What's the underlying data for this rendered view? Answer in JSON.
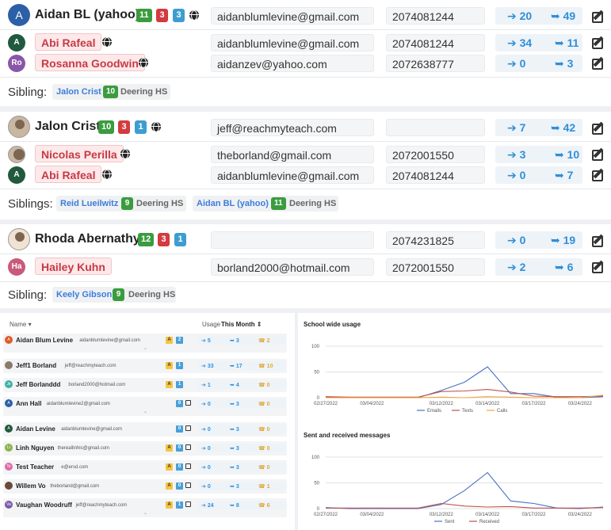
{
  "families": [
    {
      "student": {
        "name": "Aidan BL (yahoo)",
        "avatar": "A",
        "avatar_color": "#2d5fa8",
        "badges": [
          "11",
          "3",
          "3"
        ],
        "email": "aidanblumlevine@gmail.com",
        "phone": "2074081244",
        "sent": "20",
        "received": "49"
      },
      "contacts": [
        {
          "name": "Abi Rafeal",
          "avatar": "A",
          "avatar_color": "#21593f",
          "email": "aidanblumlevine@gmail.com",
          "phone": "2074081244",
          "sent": "34",
          "received": "11"
        },
        {
          "name": "Rosanna Goodwin",
          "avatar": "Ro",
          "avatar_color": "#8a57a8",
          "email": "aidanzev@yahoo.com",
          "phone": "2072638777",
          "sent": "0",
          "received": "3"
        }
      ],
      "sibling_label": "Sibling:",
      "siblings": [
        {
          "name": "Jalon Crist",
          "badge": "10",
          "school": "Deering HS"
        }
      ]
    },
    {
      "student": {
        "name": "Jalon Crist",
        "avatar": "",
        "avatar_color": "#c9b7a2",
        "badges": [
          "10",
          "3",
          "1"
        ],
        "email": "jeff@reachmyteach.com",
        "phone": "",
        "sent": "7",
        "received": "42"
      },
      "contacts": [
        {
          "name": "Nicolas Perilla",
          "avatar": "",
          "avatar_color": "#c9b7a2",
          "email": "theborland@gmail.com",
          "phone": "2072001550",
          "sent": "3",
          "received": "10"
        },
        {
          "name": "Abi Rafeal",
          "avatar": "A",
          "avatar_color": "#21593f",
          "email": "aidanblumlevine@gmail.com",
          "phone": "2074081244",
          "sent": "0",
          "received": "7"
        }
      ],
      "sibling_label": "Siblings:",
      "siblings": [
        {
          "name": "Reid Lueilwitz",
          "badge": "9",
          "school": "Deering HS"
        },
        {
          "name": "Aidan BL (yahoo)",
          "badge": "11",
          "school": "Deering HS"
        }
      ]
    },
    {
      "student": {
        "name": "Rhoda Abernathy",
        "avatar": "",
        "avatar_color": "#f1e3d3",
        "badges": [
          "12",
          "3",
          "1"
        ],
        "email": "",
        "phone": "2074231825",
        "sent": "0",
        "received": "19"
      },
      "contacts": [
        {
          "name": "Hailey Kuhn",
          "avatar": "Ha",
          "avatar_color": "#c85a7c",
          "email": "borland2000@hotmail.com",
          "phone": "2072001550",
          "sent": "2",
          "received": "6"
        }
      ],
      "sibling_label": "Sibling:",
      "siblings": [
        {
          "name": "Keely Gibson",
          "badge": "9",
          "school": "Deering HS"
        }
      ]
    }
  ],
  "table": {
    "name_header": "Name",
    "usage_header": "Usage",
    "period": "This Month",
    "rows": [
      {
        "avatar": "A",
        "color": "#e05a2b",
        "name": "Aidan Blum Levine",
        "email": "aidanblumlevine@gmail.com",
        "a": "A",
        "n": "2",
        "sent": "5",
        "recv": "3",
        "calls": "2",
        "edit": false,
        "chev": true
      },
      {
        "avatar": "",
        "color": "#8a7a6a",
        "name": "Jeff1 Borland",
        "email": "jeff@reachmyteach.com",
        "a": "A",
        "n": "1",
        "sent": "33",
        "recv": "17",
        "calls": "10",
        "edit": false,
        "chev": false
      },
      {
        "avatar": "Je",
        "color": "#3fb1a3",
        "name": "Jeff Borlanddd",
        "email": "borland2000@hotmail.com",
        "a": "A",
        "n": "1",
        "sent": "1",
        "recv": "4",
        "calls": "0",
        "edit": false,
        "chev": false
      },
      {
        "avatar": "A",
        "color": "#2d5fa8",
        "name": "Ann Hall",
        "email": "aidanblumlevine2@gmail.com",
        "a": "",
        "n": "0",
        "sent": "0",
        "recv": "3",
        "calls": "0",
        "edit": true,
        "chev": true
      },
      {
        "avatar": "A",
        "color": "#21593f",
        "name": "Aidan Levine",
        "email": "aidanblumlevine@gmail.com",
        "a": "",
        "n": "0",
        "sent": "0",
        "recv": "3",
        "calls": "0",
        "edit": true,
        "chev": false
      },
      {
        "avatar": "Li",
        "color": "#8bb34a",
        "name": "Linh Nguyen",
        "email": "thereallinhis@gmail.com",
        "a": "A",
        "n": "0",
        "sent": "0",
        "recv": "3",
        "calls": "0",
        "edit": true,
        "chev": false
      },
      {
        "avatar": "Te",
        "color": "#e06aa8",
        "name": "Test Teacher",
        "email": "e@ersd.com",
        "a": "A",
        "n": "0",
        "sent": "0",
        "recv": "3",
        "calls": "0",
        "edit": true,
        "chev": false
      },
      {
        "avatar": "",
        "color": "#6a4a3a",
        "name": "Willem Vo",
        "email": "theborland@gmail.com",
        "a": "A",
        "n": "0",
        "sent": "0",
        "recv": "3",
        "calls": "1",
        "edit": true,
        "chev": false
      },
      {
        "avatar": "Va",
        "color": "#7b5aa8",
        "name": "Vaughan Woodruff",
        "email": "jeff@reachmyteach.com",
        "a": "A",
        "n": "1",
        "sent": "24",
        "recv": "8",
        "calls": "6",
        "edit": true,
        "chev": true
      }
    ]
  },
  "chart_data": [
    {
      "type": "line",
      "title": "School wide usage",
      "x": [
        "02/27/2022",
        "03/02/2022",
        "03/04/2022",
        "03/06/2022",
        "03/08/2022",
        "03/12/2022",
        "03/13/2022",
        "03/14/2022",
        "03/15/2022",
        "03/17/2022",
        "03/20/2022",
        "03/24/2022",
        "03/27/2022"
      ],
      "x_ticks": [
        "02/27/2022",
        "03/04/2022",
        "03/12/2022",
        "03/14/2022",
        "03/17/2022",
        "03/24/2022"
      ],
      "ylim": [
        0,
        100
      ],
      "y_ticks": [
        0,
        50,
        100
      ],
      "series": [
        {
          "name": "Emails",
          "color": "#4472c4",
          "values": [
            1,
            0,
            0,
            0,
            0,
            14,
            30,
            60,
            8,
            8,
            1,
            0,
            2
          ]
        },
        {
          "name": "Texts",
          "color": "#c0504d",
          "values": [
            2,
            1,
            1,
            1,
            1,
            12,
            13,
            16,
            11,
            3,
            2,
            2,
            3
          ]
        },
        {
          "name": "Calls",
          "color": "#f2a33a",
          "values": [
            0,
            0,
            0,
            0,
            0,
            1,
            0,
            2,
            1,
            0,
            0,
            0,
            5
          ]
        }
      ],
      "legend": "bottom"
    },
    {
      "type": "line",
      "title": "Sent and received messages",
      "x": [
        "02/27/2022",
        "03/02/2022",
        "03/04/2022",
        "03/06/2022",
        "03/08/2022",
        "03/12/2022",
        "03/13/2022",
        "03/14/2022",
        "03/15/2022",
        "03/17/2022",
        "03/20/2022",
        "03/24/2022",
        "03/27/2022"
      ],
      "x_ticks": [
        "02/27/2022",
        "03/04/2022",
        "03/12/2022",
        "03/14/2022",
        "03/17/2022",
        "03/24/2022"
      ],
      "ylim": [
        0,
        100
      ],
      "y_ticks": [
        0,
        50,
        100
      ],
      "series": [
        {
          "name": "Sent",
          "color": "#4472c4",
          "values": [
            2,
            0,
            0,
            0,
            0,
            8,
            35,
            70,
            15,
            10,
            1,
            0,
            3
          ]
        },
        {
          "name": "Received",
          "color": "#c0504d",
          "values": [
            1,
            1,
            1,
            1,
            1,
            10,
            5,
            3,
            4,
            1,
            1,
            1,
            2
          ]
        }
      ],
      "legend": "bottom"
    }
  ]
}
